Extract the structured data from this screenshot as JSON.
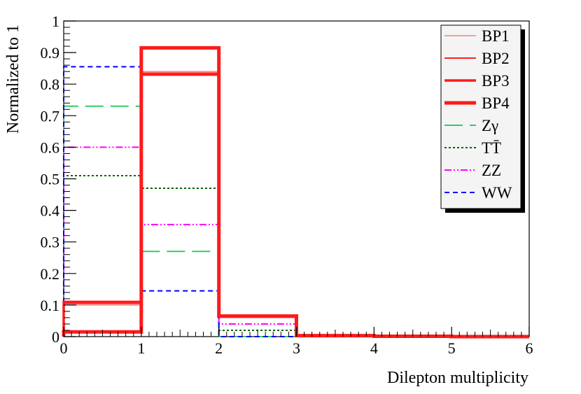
{
  "chart_data": {
    "type": "step-histogram",
    "xlabel": "Dilepton multiplicity",
    "ylabel": "Normalized to 1",
    "xlim": [
      0,
      6
    ],
    "ylim": [
      0,
      1
    ],
    "x_ticks": [
      "0",
      "1",
      "2",
      "3",
      "4",
      "5",
      "6"
    ],
    "y_ticks": [
      "0",
      "0.1",
      "0.2",
      "0.3",
      "0.4",
      "0.5",
      "0.6",
      "0.7",
      "0.8",
      "0.9",
      "1"
    ],
    "bin_edges": [
      0,
      1,
      2,
      3,
      4,
      5,
      6
    ],
    "legend_position": "top-right",
    "series": [
      {
        "name": "BP1",
        "values": [
          0.1,
          0.84,
          0.065,
          0.003,
          0.001,
          0.0
        ],
        "color": "#e87070",
        "style": "solid-thin"
      },
      {
        "name": "BP2",
        "values": [
          0.105,
          0.835,
          0.065,
          0.003,
          0.001,
          0.0
        ],
        "color": "#ff2020",
        "style": "solid"
      },
      {
        "name": "BP3",
        "values": [
          0.11,
          0.83,
          0.063,
          0.003,
          0.001,
          0.0
        ],
        "color": "#ff1a1a",
        "style": "solid-thick"
      },
      {
        "name": "BP4",
        "values": [
          0.015,
          0.915,
          0.065,
          0.003,
          0.001,
          0.0
        ],
        "color": "#ff1a1a",
        "style": "solid-thickest"
      },
      {
        "name": "Zγ",
        "values": [
          0.73,
          0.27,
          0.0,
          0.0,
          0.0,
          0.0
        ],
        "color": "#33cc66",
        "style": "long-dash"
      },
      {
        "name": "TT̄",
        "values": [
          0.51,
          0.47,
          0.02,
          0.0,
          0.0,
          0.0
        ],
        "color": "#006600",
        "style": "dotted"
      },
      {
        "name": "ZZ",
        "values": [
          0.6,
          0.355,
          0.04,
          0.0,
          0.0,
          0.0
        ],
        "color": "#ff00ff",
        "style": "dash-dot-dot"
      },
      {
        "name": "WW",
        "values": [
          0.855,
          0.145,
          0.0,
          0.0,
          0.0,
          0.0
        ],
        "color": "#0000ff",
        "style": "dashed"
      }
    ]
  }
}
